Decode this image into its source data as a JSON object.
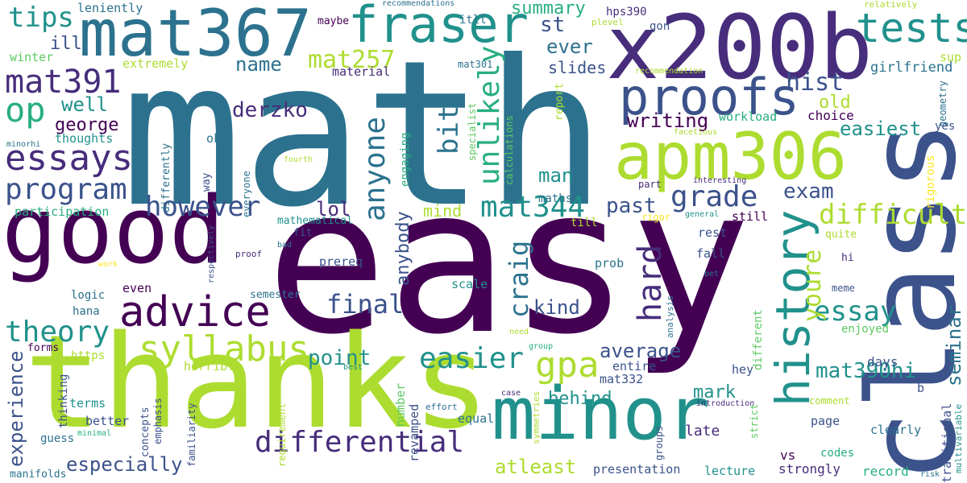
{
  "words": {
    "math": "math",
    "easy": "easy",
    "class": "class",
    "thanks": "thanks",
    "good": "good",
    "x200b": "x200b",
    "mat367": "mat367",
    "apm306": "apm306",
    "minor": "minor",
    "proofs": "proofs",
    "fraser": "fraser",
    "advice": "advice",
    "history": "history",
    "tests": "tests",
    "essays": "essays",
    "syllabus": "syllabus",
    "mat391": "mat391",
    "op": "op",
    "program": "program",
    "theory": "theory",
    "easier": "easier",
    "gpa": "gpa",
    "differential": "differential",
    "anyone": "anyone",
    "unlikely": "unlikely",
    "hard": "hard",
    "grade": "grade",
    "mat344": "mat344",
    "however": "however",
    "difficult": "difficult",
    "essay": "essay",
    "final": "final",
    "craig": "craig",
    "exam": "exam",
    "mat257": "mat257",
    "tips": "tips",
    "derzko": "derzko",
    "youre": "youre",
    "hist": "hist",
    "bit": "bit",
    "especially": "especially",
    "experience": "experience",
    "mat390hi": "mat390hi",
    "average": "average",
    "point": "point",
    "seminar": "seminar",
    "past": "past",
    "kind": "kind",
    "lol": "lol",
    "george": "george",
    "well": "well",
    "name": "name",
    "writing": "writing",
    "atleast": "atleast",
    "ever": "ever",
    "mark": "mark",
    "easiest": "easiest",
    "behind": "behind",
    "man": "man",
    "summary": "summary",
    "anybody": "anybody",
    "st": "st",
    "old": "old",
    "mind": "mind",
    "slides": "slides",
    "ill": "ill",
    "leniently": "leniently",
    "winter": "winter",
    "extremely": "extremely",
    "thoughts": "thoughts",
    "participation": "participation",
    "number": "number",
    "workload": "workload",
    "choice": "choice",
    "hps390": "hps390",
    "girlfriend": "girlfriend",
    "sup": "sup",
    "itll": "itll",
    "mat301": "mat301",
    "material": "material",
    "maybe": "maybe",
    "recommendations": "recommendations",
    "plevel": "plevel",
    "gon": "gon",
    "relatively": "relatively",
    "recommendation": "recommendation",
    "report": "report",
    "specialist": "specialist",
    "calculations": "calculations",
    "engaging": "engaging",
    "differently": "differently",
    "ok": "ok",
    "maths": "maths",
    "way": "way",
    "everyone": "everyone",
    "fourth": "fourth",
    "facetious": "facetious",
    "minorhi": "minorhi",
    "interesting": "interesting",
    "part": "part",
    "geometry": "geometry",
    "rigorous": "rigorous",
    "yes": "yes",
    "till": "till",
    "rigor": "rigor",
    "general": "general",
    "still": "still",
    "mathematical": "mathematical",
    "fit": "fit",
    "respectively": "respectively",
    "proof": "proof",
    "bad": "bad",
    "prereq": "prereq",
    "prob": "prob",
    "rest": "rest",
    "fall": "fall",
    "quite": "quite",
    "hi": "hi",
    "meme": "meme",
    "bet": "bet",
    "work": "work",
    "logic": "logic",
    "even": "even",
    "semester": "semester",
    "hana": "hana",
    "scale": "scale",
    "analysis": "analysis",
    "enjoyed": "enjoyed",
    "different": "different",
    "need": "need",
    "group": "group",
    "forms": "forms",
    "https": "https",
    "horrible": "horrible",
    "best": "best",
    "hey": "hey",
    "entire": "entire",
    "mat332": "mat332",
    "days": "days",
    "late": "late",
    "b": "b",
    "terms": "terms",
    "thinking": "thinking",
    "emphasis": "emphasis",
    "concepts": "concepts",
    "familiarity": "familiarity",
    "requirement": "requirement",
    "effort": "effort",
    "case": "case",
    "symmetries": "symmetries",
    "revamped": "revamped",
    "equal": "equal",
    "introduction": "introduction",
    "comment": "comment",
    "groups": "groups",
    "strict": "strict",
    "traditional": "traditional",
    "multivariable": "multivariable",
    "page": "page",
    "clearly": "clearly",
    "better": "better",
    "guess": "guess",
    "minimal": "minimal",
    "manifolds": "manifolds",
    "codes": "codes",
    "vs": "vs",
    "presentation": "presentation",
    "lecture": "lecture",
    "strongly": "strongly",
    "record": "record",
    "risk": "risk"
  },
  "palette": [
    "#440154",
    "#472d7b",
    "#3b528b",
    "#2c728e",
    "#21918c",
    "#28ae80",
    "#5ec962",
    "#addc30",
    "#fde725"
  ]
}
